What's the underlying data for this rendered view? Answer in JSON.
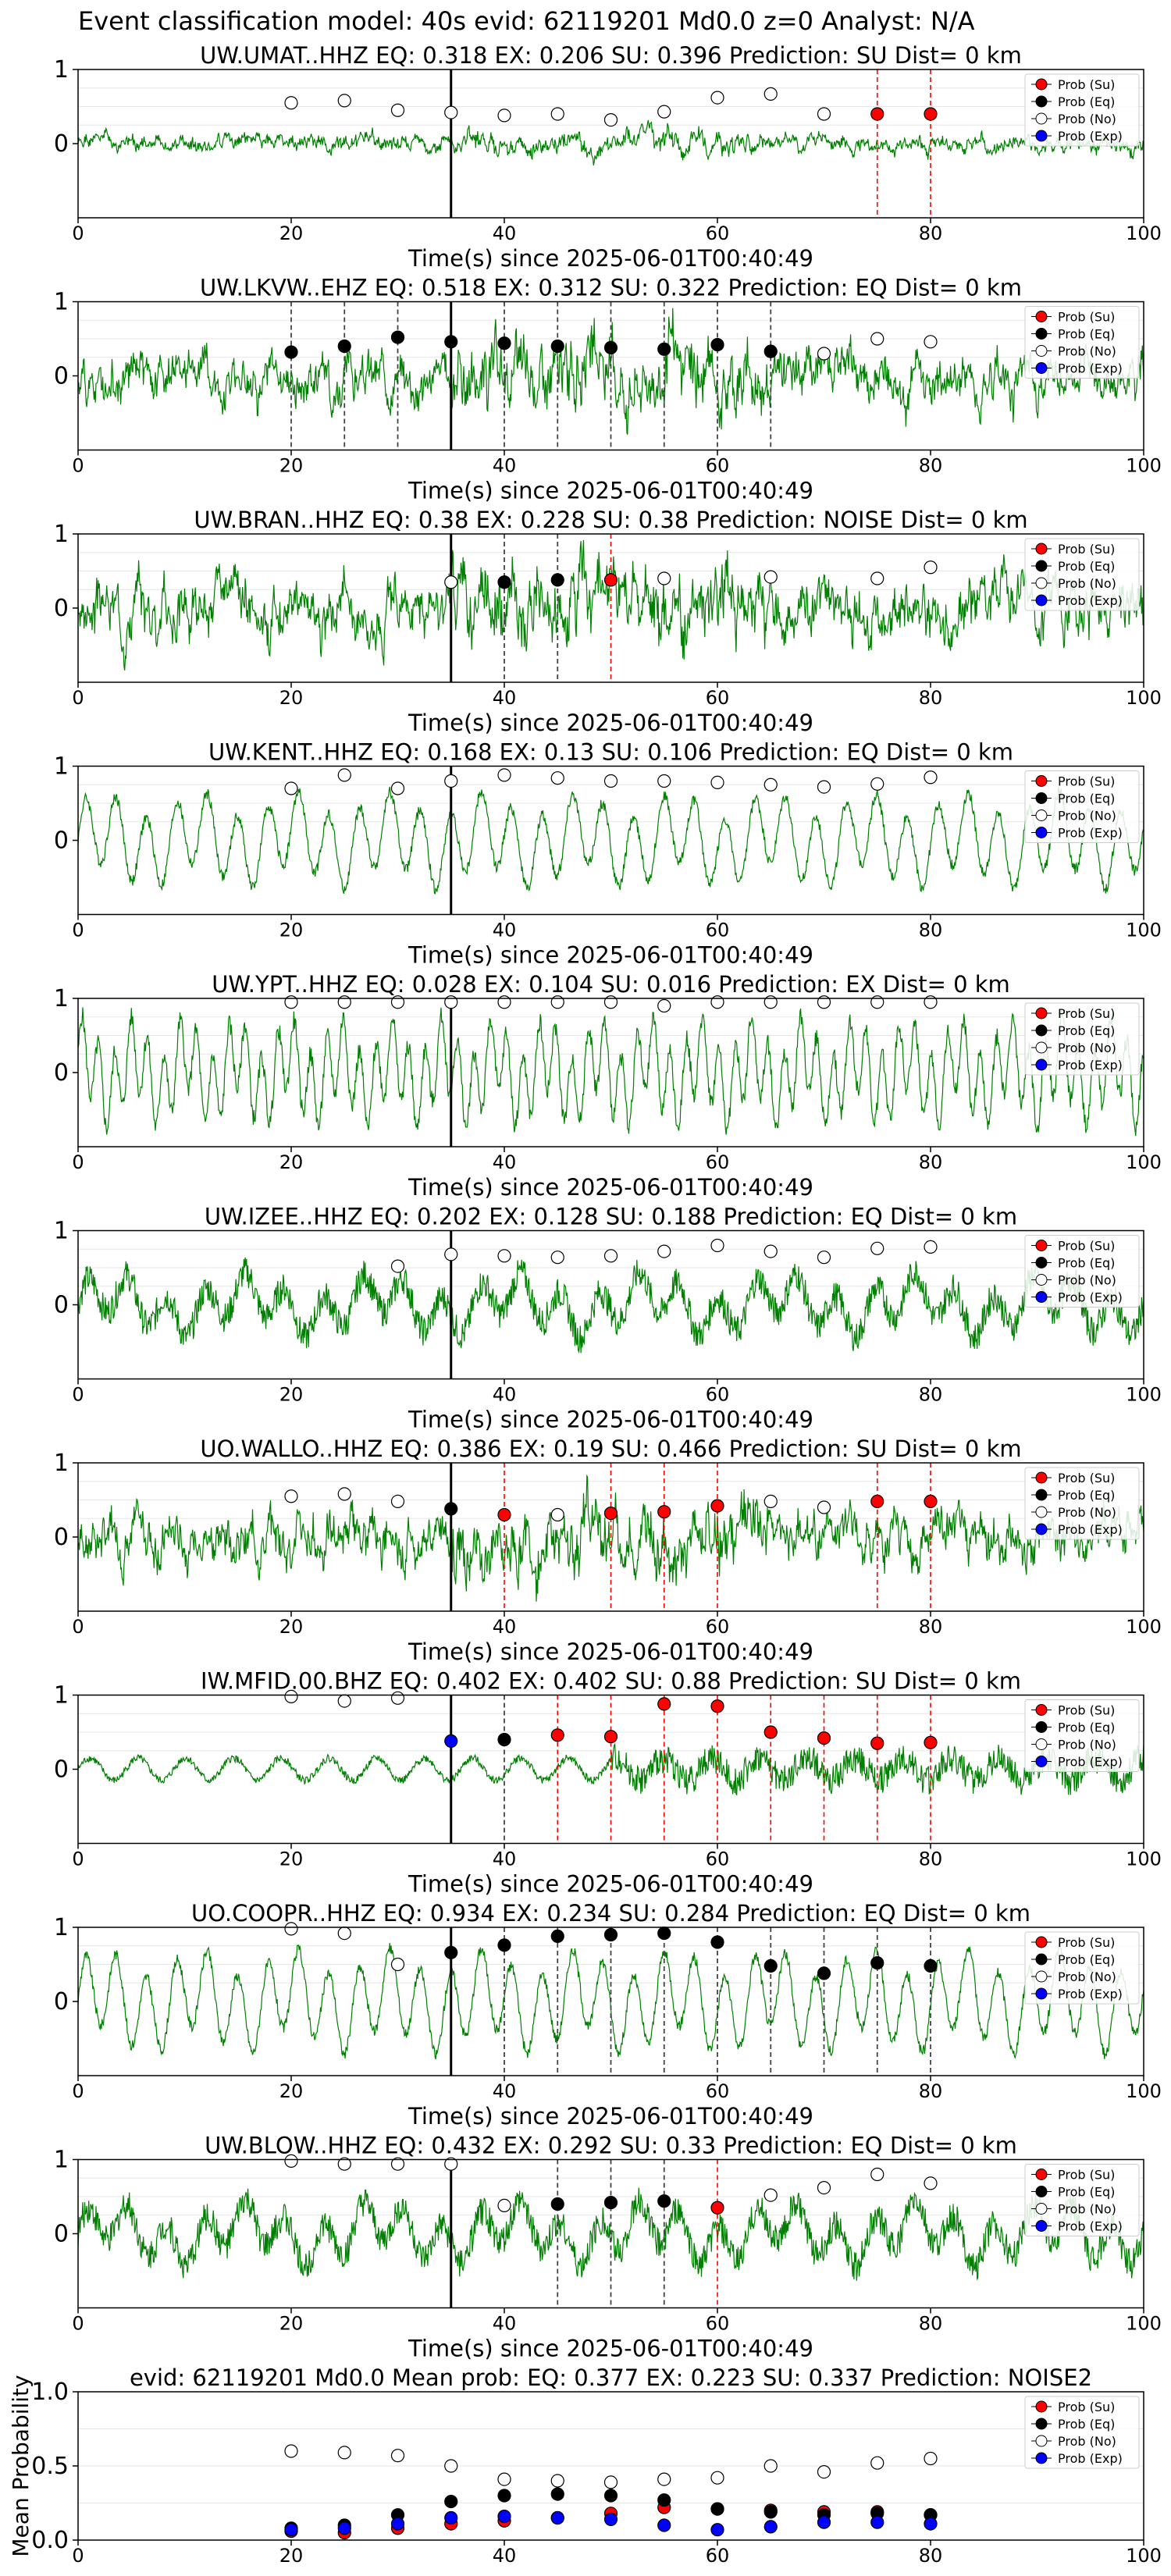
{
  "figure_title": "Event classification model: 40s evid: 62119201 Md0.0 z=0 Analyst: N/A",
  "x_axis_label": "Time(s) since 2025-06-01T00:40:49",
  "legend": [
    "Prob (Su)",
    "Prob (Eq)",
    "Prob (No)",
    "Prob (Exp)"
  ],
  "colors": {
    "su": "#ff0000",
    "eq": "#000000",
    "no": "#ffffff",
    "exp": "#0000ff",
    "trace": "#008000"
  },
  "chart_data": [
    {
      "type": "line",
      "title": "UW.UMAT..HHZ   EQ: 0.318  EX: 0.206  SU: 0.396   Prediction: SU    Dist= 0 km",
      "xlim": [
        0,
        100
      ],
      "xticks": [
        0,
        20,
        40,
        60,
        80,
        100
      ],
      "ylim": [
        -1,
        1
      ],
      "yticks": [
        0,
        1
      ],
      "pick_time": 35,
      "trace_amp": 0.12,
      "trace_style": "noise",
      "trace_seed": 1,
      "markers": [
        [
          20,
          0.55,
          "no"
        ],
        [
          25,
          0.58,
          "no"
        ],
        [
          30,
          0.45,
          "no"
        ],
        [
          35,
          0.42,
          "no"
        ],
        [
          40,
          0.38,
          "no"
        ],
        [
          45,
          0.4,
          "no"
        ],
        [
          50,
          0.32,
          "no"
        ],
        [
          55,
          0.43,
          "no"
        ],
        [
          60,
          0.62,
          "no"
        ],
        [
          65,
          0.67,
          "no"
        ],
        [
          70,
          0.4,
          "no"
        ],
        [
          75,
          0.4,
          "su"
        ],
        [
          80,
          0.4,
          "su"
        ]
      ],
      "su_lines": [
        75,
        80
      ],
      "eq_lines": []
    },
    {
      "type": "line",
      "title": "UW.LKVW..EHZ   EQ: 0.518  EX: 0.312  SU: 0.322   Prediction: EQ    Dist= 0 km",
      "xlim": [
        0,
        100
      ],
      "xticks": [
        0,
        20,
        40,
        60,
        80,
        100
      ],
      "ylim": [
        -1,
        1
      ],
      "yticks": [
        0,
        1
      ],
      "pick_time": 35,
      "trace_amp": 0.35,
      "trace_style": "noise",
      "trace_seed": 2,
      "markers": [
        [
          20,
          0.32,
          "eq"
        ],
        [
          25,
          0.4,
          "eq"
        ],
        [
          30,
          0.52,
          "eq"
        ],
        [
          35,
          0.46,
          "eq"
        ],
        [
          40,
          0.44,
          "eq"
        ],
        [
          45,
          0.4,
          "eq"
        ],
        [
          50,
          0.38,
          "eq"
        ],
        [
          55,
          0.36,
          "eq"
        ],
        [
          60,
          0.42,
          "eq"
        ],
        [
          65,
          0.33,
          "eq"
        ],
        [
          70,
          0.3,
          "no"
        ],
        [
          75,
          0.5,
          "no"
        ],
        [
          80,
          0.46,
          "no"
        ]
      ],
      "su_lines": [],
      "eq_lines": [
        20,
        25,
        30,
        35,
        40,
        45,
        50,
        55,
        60,
        65
      ]
    },
    {
      "type": "line",
      "title": "UW.BRAN..HHZ   EQ: 0.38  EX: 0.228  SU: 0.38   Prediction: NOISE    Dist= 0 km",
      "xlim": [
        0,
        100
      ],
      "xticks": [
        0,
        20,
        40,
        60,
        80,
        100
      ],
      "ylim": [
        -1,
        1
      ],
      "yticks": [
        0,
        1
      ],
      "pick_time": 35,
      "trace_amp": 0.4,
      "trace_style": "noise",
      "trace_seed": 3,
      "markers": [
        [
          35,
          0.35,
          "no"
        ],
        [
          40,
          0.35,
          "eq"
        ],
        [
          45,
          0.38,
          "eq"
        ],
        [
          50,
          0.38,
          "su"
        ],
        [
          55,
          0.4,
          "no"
        ],
        [
          65,
          0.42,
          "no"
        ],
        [
          75,
          0.4,
          "no"
        ],
        [
          80,
          0.55,
          "no"
        ]
      ],
      "su_lines": [
        50
      ],
      "eq_lines": [
        40,
        45
      ]
    },
    {
      "type": "line",
      "title": "UW.KENT..HHZ   EQ: 0.168  EX: 0.13  SU: 0.106   Prediction: EQ    Dist= 0 km",
      "xlim": [
        0,
        100
      ],
      "xticks": [
        0,
        20,
        40,
        60,
        80,
        100
      ],
      "ylim": [
        -1,
        1
      ],
      "yticks": [
        0,
        1
      ],
      "pick_time": 35,
      "trace_amp": 0.6,
      "trace_style": "wave",
      "trace_seed": 4,
      "markers": [
        [
          20,
          0.7,
          "no"
        ],
        [
          25,
          0.88,
          "no"
        ],
        [
          30,
          0.7,
          "no"
        ],
        [
          35,
          0.8,
          "no"
        ],
        [
          40,
          0.88,
          "no"
        ],
        [
          45,
          0.84,
          "no"
        ],
        [
          50,
          0.8,
          "no"
        ],
        [
          55,
          0.8,
          "no"
        ],
        [
          60,
          0.78,
          "no"
        ],
        [
          65,
          0.75,
          "no"
        ],
        [
          70,
          0.72,
          "no"
        ],
        [
          75,
          0.76,
          "no"
        ],
        [
          80,
          0.85,
          "no"
        ]
      ],
      "su_lines": [],
      "eq_lines": []
    },
    {
      "type": "line",
      "title": "UW.YPT..HHZ   EQ: 0.028  EX: 0.104  SU: 0.016   Prediction: EX    Dist= 0 km",
      "xlim": [
        0,
        100
      ],
      "xticks": [
        0,
        20,
        40,
        60,
        80,
        100
      ],
      "ylim": [
        -1,
        1
      ],
      "yticks": [
        0,
        1
      ],
      "pick_time": 35,
      "trace_amp": 0.7,
      "trace_style": "fastwave",
      "trace_seed": 5,
      "markers": [
        [
          20,
          0.95,
          "no"
        ],
        [
          25,
          0.95,
          "no"
        ],
        [
          30,
          0.95,
          "no"
        ],
        [
          35,
          0.95,
          "no"
        ],
        [
          40,
          0.95,
          "no"
        ],
        [
          45,
          0.95,
          "no"
        ],
        [
          50,
          0.95,
          "no"
        ],
        [
          55,
          0.9,
          "no"
        ],
        [
          60,
          0.95,
          "no"
        ],
        [
          65,
          0.95,
          "no"
        ],
        [
          70,
          0.95,
          "no"
        ],
        [
          75,
          0.95,
          "no"
        ],
        [
          80,
          0.95,
          "no"
        ]
      ],
      "su_lines": [],
      "eq_lines": []
    },
    {
      "type": "line",
      "title": "UW.IZEE..HHZ   EQ: 0.202  EX: 0.128  SU: 0.188   Prediction: EQ    Dist= 0 km",
      "xlim": [
        0,
        100
      ],
      "xticks": [
        0,
        20,
        40,
        60,
        80,
        100
      ],
      "ylim": [
        -1,
        1
      ],
      "yticks": [
        0,
        1
      ],
      "pick_time": 35,
      "trace_amp": 0.45,
      "trace_style": "mixed",
      "trace_seed": 6,
      "markers": [
        [
          30,
          0.52,
          "no"
        ],
        [
          35,
          0.68,
          "no"
        ],
        [
          40,
          0.66,
          "no"
        ],
        [
          45,
          0.64,
          "no"
        ],
        [
          50,
          0.66,
          "no"
        ],
        [
          55,
          0.72,
          "no"
        ],
        [
          60,
          0.8,
          "no"
        ],
        [
          65,
          0.72,
          "no"
        ],
        [
          70,
          0.64,
          "no"
        ],
        [
          75,
          0.76,
          "no"
        ],
        [
          80,
          0.78,
          "no"
        ]
      ],
      "su_lines": [],
      "eq_lines": []
    },
    {
      "type": "line",
      "title": "UO.WALLO..HHZ   EQ: 0.386  EX: 0.19  SU: 0.466   Prediction: SU    Dist= 0 km",
      "xlim": [
        0,
        100
      ],
      "xticks": [
        0,
        20,
        40,
        60,
        80,
        100
      ],
      "ylim": [
        -1,
        1
      ],
      "yticks": [
        0,
        1
      ],
      "pick_time": 35,
      "trace_amp": 0.35,
      "trace_style": "noise",
      "trace_seed": 7,
      "markers": [
        [
          20,
          0.55,
          "no"
        ],
        [
          25,
          0.58,
          "no"
        ],
        [
          30,
          0.48,
          "no"
        ],
        [
          35,
          0.38,
          "eq"
        ],
        [
          40,
          0.3,
          "su"
        ],
        [
          45,
          0.3,
          "no"
        ],
        [
          50,
          0.32,
          "su"
        ],
        [
          55,
          0.34,
          "su"
        ],
        [
          60,
          0.42,
          "su"
        ],
        [
          65,
          0.48,
          "no"
        ],
        [
          70,
          0.4,
          "no"
        ],
        [
          75,
          0.48,
          "su"
        ],
        [
          80,
          0.48,
          "su"
        ]
      ],
      "su_lines": [
        40,
        50,
        55,
        60,
        75,
        80
      ],
      "eq_lines": []
    },
    {
      "type": "line",
      "title": "IW.MFID.00.BHZ   EQ: 0.402  EX: 0.402  SU: 0.88   Prediction: SU    Dist= 0 km",
      "xlim": [
        0,
        100
      ],
      "xticks": [
        0,
        20,
        40,
        60,
        80,
        100
      ],
      "ylim": [
        -1,
        1
      ],
      "yticks": [
        0,
        1
      ],
      "pick_time": 35,
      "trace_amp": 0.25,
      "trace_style": "mfid",
      "trace_seed": 8,
      "markers": [
        [
          20,
          0.98,
          "no"
        ],
        [
          25,
          0.92,
          "no"
        ],
        [
          30,
          0.96,
          "no"
        ],
        [
          35,
          0.38,
          "exp"
        ],
        [
          40,
          0.4,
          "eq"
        ],
        [
          45,
          0.46,
          "su"
        ],
        [
          50,
          0.44,
          "su"
        ],
        [
          55,
          0.88,
          "su"
        ],
        [
          60,
          0.85,
          "su"
        ],
        [
          65,
          0.5,
          "su"
        ],
        [
          70,
          0.42,
          "su"
        ],
        [
          75,
          0.35,
          "su"
        ],
        [
          80,
          0.36,
          "su"
        ]
      ],
      "su_lines": [
        45,
        50,
        55,
        60,
        65,
        70,
        75,
        80
      ],
      "eq_lines": [
        40
      ]
    },
    {
      "type": "line",
      "title": "UO.COOPR..HHZ   EQ: 0.934  EX: 0.234  SU: 0.284   Prediction: EQ    Dist= 0 km",
      "xlim": [
        0,
        100
      ],
      "xticks": [
        0,
        20,
        40,
        60,
        80,
        100
      ],
      "ylim": [
        -1,
        1
      ],
      "yticks": [
        0,
        1
      ],
      "pick_time": 35,
      "trace_amp": 0.65,
      "trace_style": "wave",
      "trace_seed": 9,
      "markers": [
        [
          20,
          0.98,
          "no"
        ],
        [
          25,
          0.92,
          "no"
        ],
        [
          30,
          0.5,
          "no"
        ],
        [
          35,
          0.66,
          "eq"
        ],
        [
          40,
          0.76,
          "eq"
        ],
        [
          45,
          0.88,
          "eq"
        ],
        [
          50,
          0.9,
          "eq"
        ],
        [
          55,
          0.92,
          "eq"
        ],
        [
          60,
          0.8,
          "eq"
        ],
        [
          65,
          0.48,
          "eq"
        ],
        [
          70,
          0.38,
          "eq"
        ],
        [
          75,
          0.52,
          "eq"
        ],
        [
          80,
          0.48,
          "eq"
        ]
      ],
      "su_lines": [],
      "eq_lines": [
        40,
        45,
        50,
        55,
        60,
        65,
        70,
        75,
        80
      ]
    },
    {
      "type": "line",
      "title": "UW.BLOW..HHZ   EQ: 0.432  EX: 0.292  SU: 0.33   Prediction: EQ    Dist= 0 km",
      "xlim": [
        0,
        100
      ],
      "xticks": [
        0,
        20,
        40,
        60,
        80,
        100
      ],
      "ylim": [
        -1,
        1
      ],
      "yticks": [
        0,
        1
      ],
      "pick_time": 35,
      "trace_amp": 0.45,
      "trace_style": "mixed",
      "trace_seed": 10,
      "markers": [
        [
          20,
          0.98,
          "no"
        ],
        [
          25,
          0.94,
          "no"
        ],
        [
          30,
          0.94,
          "no"
        ],
        [
          35,
          0.94,
          "no"
        ],
        [
          40,
          0.38,
          "no"
        ],
        [
          45,
          0.4,
          "eq"
        ],
        [
          50,
          0.42,
          "eq"
        ],
        [
          55,
          0.44,
          "eq"
        ],
        [
          60,
          0.35,
          "su"
        ],
        [
          65,
          0.52,
          "no"
        ],
        [
          70,
          0.62,
          "no"
        ],
        [
          75,
          0.8,
          "no"
        ],
        [
          80,
          0.68,
          "no"
        ]
      ],
      "su_lines": [
        60
      ],
      "eq_lines": [
        45,
        50,
        55
      ]
    },
    {
      "type": "scatter",
      "title": "evid: 62119201  Md0.0   Mean prob:   EQ: 0.377  EX: 0.223  SU: 0.337   Prediction: NOISE2",
      "ylabel": "Mean Probability",
      "xlim": [
        0,
        100
      ],
      "xticks": [
        0,
        20,
        40,
        60,
        80,
        100
      ],
      "ylim": [
        0,
        1
      ],
      "yticks": [
        0.0,
        0.5,
        1.0
      ],
      "x": [
        20,
        25,
        30,
        35,
        40,
        45,
        50,
        55,
        60,
        65,
        70,
        75,
        80
      ],
      "series": [
        {
          "name": "Prob (Su)",
          "color": "su",
          "values": [
            0.06,
            0.05,
            0.08,
            0.11,
            0.13,
            0.15,
            0.18,
            0.22,
            0.21,
            0.2,
            0.19,
            0.19,
            0.17
          ]
        },
        {
          "name": "Prob (Eq)",
          "color": "eq",
          "values": [
            0.08,
            0.1,
            0.17,
            0.26,
            0.3,
            0.31,
            0.3,
            0.27,
            0.21,
            0.19,
            0.17,
            0.18,
            0.17
          ]
        },
        {
          "name": "Prob (No)",
          "color": "no",
          "values": [
            0.6,
            0.59,
            0.57,
            0.5,
            0.41,
            0.4,
            0.39,
            0.41,
            0.42,
            0.5,
            0.46,
            0.52,
            0.55
          ]
        },
        {
          "name": "Prob (Exp)",
          "color": "exp",
          "values": [
            0.07,
            0.08,
            0.11,
            0.15,
            0.16,
            0.15,
            0.14,
            0.1,
            0.07,
            0.09,
            0.12,
            0.12,
            0.11
          ]
        }
      ]
    }
  ]
}
